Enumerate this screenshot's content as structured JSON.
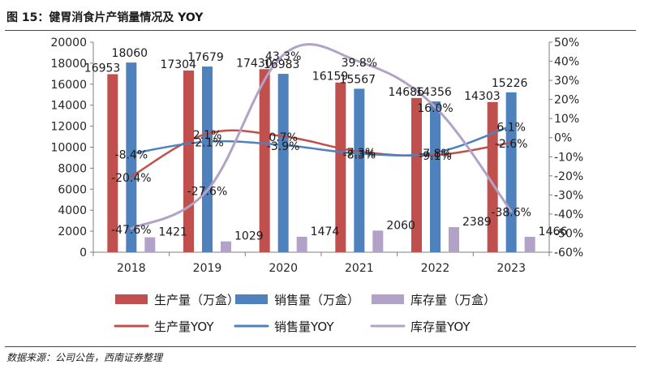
{
  "figure": {
    "title": "图 15：健胃消食片产销量情况及 YOY",
    "source": "数据来源：公司公告，西南证券整理"
  },
  "chart_data": {
    "type": "bar",
    "categories": [
      "2018",
      "2019",
      "2020",
      "2021",
      "2022",
      "2023"
    ],
    "series": [
      {
        "name": "生产量（万盒）",
        "type": "bar",
        "axis": "left",
        "color": "#c0504d",
        "values": [
          16953,
          17304,
          17430,
          16159,
          14686,
          14303
        ],
        "labels": [
          "16953",
          "17304",
          "17430",
          "16159",
          "14686",
          "14303"
        ]
      },
      {
        "name": "销售量（万盒）",
        "type": "bar",
        "axis": "left",
        "color": "#4f81bd",
        "values": [
          18060,
          17679,
          16983,
          15567,
          14356,
          15226
        ],
        "labels": [
          "18060",
          "17679",
          "16983",
          "15567",
          "14356",
          "15226"
        ]
      },
      {
        "name": "库存量（万盒）",
        "type": "bar",
        "axis": "left",
        "color": "#b3a2c7",
        "values": [
          1421,
          1029,
          1474,
          2060,
          2389,
          1466
        ],
        "labels": [
          "1421",
          "1029",
          "1474",
          "2060",
          "2389",
          "1466"
        ]
      },
      {
        "name": "生产量YOY",
        "type": "line",
        "axis": "right",
        "color": "#c0504d",
        "values": [
          -20.4,
          2.1,
          0.7,
          -7.3,
          -9.1,
          -2.6
        ],
        "labels": [
          "-20.4%",
          "2.1%",
          "0.7%",
          "-7.3%",
          "-9.1%",
          "-2.6%"
        ]
      },
      {
        "name": "销售量YOY",
        "type": "line",
        "axis": "right",
        "color": "#4f81bd",
        "values": [
          -8.4,
          -2.1,
          -3.9,
          -8.3,
          -7.8,
          6.1
        ],
        "labels": [
          "-8.4%",
          "-2.1%",
          "-3.9%",
          "-8.3%",
          "-7.8%",
          "6.1%"
        ]
      },
      {
        "name": "库存量YOY",
        "type": "line",
        "axis": "right",
        "color": "#b3a2c7",
        "values": [
          -47.6,
          -27.6,
          43.3,
          39.8,
          16.0,
          -38.6
        ],
        "labels": [
          "-47.6%",
          "-27.6%",
          "43.3%",
          "39.8%",
          "16.0%",
          "-38.6%"
        ]
      }
    ],
    "y_left": {
      "range": [
        0,
        20000
      ],
      "ticks": [
        "0",
        "2000",
        "4000",
        "6000",
        "8000",
        "10000",
        "12000",
        "14000",
        "16000",
        "18000",
        "20000"
      ]
    },
    "y_right": {
      "range": [
        -60,
        50
      ],
      "ticks": [
        "-60%",
        "-50%",
        "-40%",
        "-30%",
        "-20%",
        "-10%",
        "0%",
        "10%",
        "20%",
        "30%",
        "40%",
        "50%"
      ]
    },
    "grid": false,
    "legend": "bottom"
  }
}
